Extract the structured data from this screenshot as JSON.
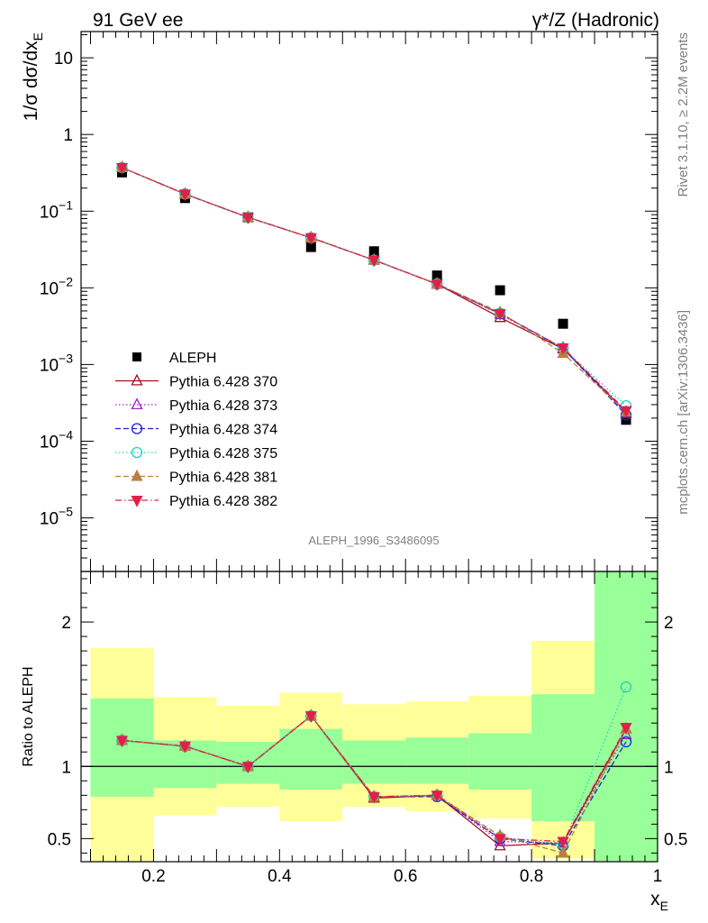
{
  "header": {
    "left_label": "91 GeV ee",
    "right_label": "γ*/Z (Hadronic)"
  },
  "side_labels": {
    "rivet": "Rivet 3.1.10, ≥ 2.2M events",
    "mcplots": "mcplots.cern.ch [arXiv:1306.3436]"
  },
  "watermark": "ALEPH_1996_S3486095",
  "colors": {
    "data": "#000000",
    "band_inner": "#99ff99",
    "band_outer": "#ffff99"
  },
  "chart_data": [
    {
      "type": "scatter",
      "panel": "main",
      "ylabel": "1/σ dσ/dx_E",
      "yscale": "log",
      "ylim": [
        2e-06,
        22
      ],
      "xlim": [
        0.085,
        1.0
      ],
      "y_tick_labels": [
        "10",
        "1",
        "10⁻¹",
        "10⁻²",
        "10⁻³",
        "10⁻⁴",
        "10⁻⁵"
      ],
      "legend_position": "lower-left",
      "x": [
        0.15,
        0.25,
        0.35,
        0.45,
        0.55,
        0.65,
        0.75,
        0.85,
        0.95
      ],
      "series": [
        {
          "name": "ALEPH",
          "color": "#000000",
          "marker": "square",
          "line": "none",
          "values": [
            0.32,
            0.148,
            0.083,
            0.034,
            0.03,
            0.0145,
            0.0093,
            0.0034,
            0.00019
          ]
        },
        {
          "name": "Pythia 6.428 370",
          "color": "#a01020",
          "marker": "triangle-up-open",
          "line": "solid",
          "values": [
            0.37,
            0.167,
            0.083,
            0.045,
            0.023,
            0.0112,
            0.0041,
            0.0016,
            0.00024
          ]
        },
        {
          "name": "Pythia 6.428 373",
          "color": "#a020d0",
          "marker": "triangle-up-open",
          "line": "dotted",
          "values": [
            0.37,
            0.167,
            0.083,
            0.045,
            0.023,
            0.0113,
            0.0045,
            0.00165,
            0.00023
          ]
        },
        {
          "name": "Pythia 6.428 374",
          "color": "#2020d0",
          "marker": "circle-open",
          "line": "dashed",
          "values": [
            0.37,
            0.168,
            0.083,
            0.045,
            0.023,
            0.0112,
            0.0046,
            0.00163,
            0.00022
          ]
        },
        {
          "name": "Pythia 6.428 375",
          "color": "#20d0c0",
          "marker": "circle-open",
          "line": "dotted",
          "values": [
            0.37,
            0.167,
            0.083,
            0.045,
            0.023,
            0.0113,
            0.0047,
            0.00163,
            0.00029
          ]
        },
        {
          "name": "Pythia 6.428 381",
          "color": "#b88040",
          "marker": "triangle-up-filled",
          "line": "dashed",
          "values": [
            0.37,
            0.167,
            0.083,
            0.045,
            0.023,
            0.0112,
            0.0048,
            0.0014,
            0.00024
          ]
        },
        {
          "name": "Pythia 6.428 382",
          "color": "#e0204a",
          "marker": "triangle-down-filled",
          "line": "dashdot",
          "values": [
            0.37,
            0.167,
            0.083,
            0.045,
            0.023,
            0.0112,
            0.0046,
            0.00165,
            0.00025
          ]
        }
      ]
    },
    {
      "type": "line",
      "panel": "ratio",
      "xlabel": "x_E",
      "ylabel": "Ratio to ALEPH",
      "ylim": [
        0.34,
        2.35
      ],
      "xlim": [
        0.085,
        1.0
      ],
      "x_tick_labels": [
        "0.2",
        "0.4",
        "0.6",
        "0.8",
        "1"
      ],
      "y_tick_labels": [
        "0.5",
        "1",
        "2"
      ],
      "reference_line": 1,
      "bins": [
        [
          0.1,
          0.2
        ],
        [
          0.2,
          0.3
        ],
        [
          0.3,
          0.4
        ],
        [
          0.4,
          0.5
        ],
        [
          0.5,
          0.6
        ],
        [
          0.6,
          0.7
        ],
        [
          0.7,
          0.8
        ],
        [
          0.8,
          0.9
        ],
        [
          0.9,
          1.0
        ]
      ],
      "band_inner": [
        [
          0.79,
          1.47
        ],
        [
          0.85,
          1.18
        ],
        [
          0.88,
          1.17
        ],
        [
          0.84,
          1.26
        ],
        [
          0.88,
          1.18
        ],
        [
          0.88,
          1.2
        ],
        [
          0.84,
          1.23
        ],
        [
          0.62,
          1.5
        ],
        [
          0.34,
          2.35
        ]
      ],
      "band_outer": [
        [
          0.34,
          1.82
        ],
        [
          0.66,
          1.48
        ],
        [
          0.72,
          1.42
        ],
        [
          0.62,
          1.51
        ],
        [
          0.72,
          1.43
        ],
        [
          0.69,
          1.45
        ],
        [
          0.64,
          1.49
        ],
        [
          0.36,
          1.87
        ],
        [
          0.34,
          2.35
        ]
      ],
      "x": [
        0.15,
        0.25,
        0.35,
        0.45,
        0.55,
        0.65,
        0.75,
        0.85,
        0.95
      ],
      "series": [
        {
          "name": "Pythia 6.428 370",
          "color": "#a01020",
          "marker": "triangle-up-open",
          "line": "solid",
          "values": [
            1.18,
            1.14,
            1.0,
            1.35,
            0.78,
            0.8,
            0.45,
            0.47,
            1.26
          ]
        },
        {
          "name": "Pythia 6.428 373",
          "color": "#a020d0",
          "marker": "triangle-up-open",
          "line": "dotted",
          "values": [
            1.18,
            1.14,
            1.0,
            1.35,
            0.79,
            0.8,
            0.48,
            0.47,
            1.22
          ]
        },
        {
          "name": "Pythia 6.428 374",
          "color": "#2020d0",
          "marker": "circle-open",
          "line": "dashed",
          "values": [
            1.18,
            1.14,
            1.0,
            1.35,
            0.79,
            0.79,
            0.5,
            0.45,
            1.17
          ]
        },
        {
          "name": "Pythia 6.428 375",
          "color": "#20d0c0",
          "marker": "circle-open",
          "line": "dotted",
          "values": [
            1.18,
            1.14,
            1.0,
            1.35,
            0.79,
            0.8,
            0.51,
            0.46,
            1.55
          ]
        },
        {
          "name": "Pythia 6.428 381",
          "color": "#b88040",
          "marker": "triangle-up-filled",
          "line": "dashed",
          "values": [
            1.18,
            1.14,
            1.0,
            1.35,
            0.79,
            0.8,
            0.52,
            0.4,
            1.26
          ]
        },
        {
          "name": "Pythia 6.428 382",
          "color": "#e0204a",
          "marker": "triangle-down-filled",
          "line": "dashdot",
          "values": [
            1.18,
            1.14,
            1.0,
            1.35,
            0.79,
            0.8,
            0.5,
            0.48,
            1.27
          ]
        }
      ]
    }
  ]
}
